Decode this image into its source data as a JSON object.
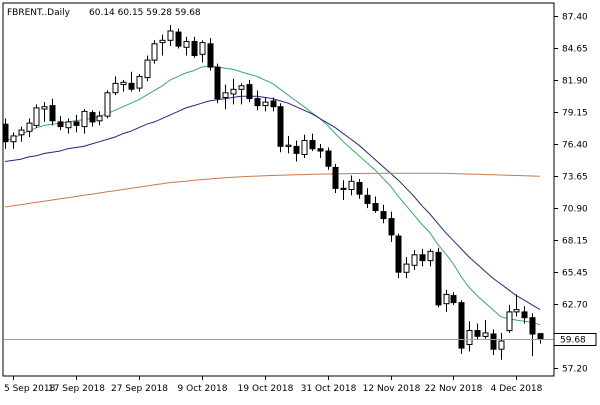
{
  "header": {
    "symbol_label": "FBRENT..Daily",
    "ohlc_label": "60.14 60.15 59.28 59.68"
  },
  "last_price_label": "59.68",
  "colors": {
    "background": "#ffffff",
    "axis": "#000000",
    "candle_bull_fill": "#ffffff",
    "candle_bear_fill": "#000000",
    "candle_outline": "#000000",
    "ma_fast": "#3aa672",
    "ma_mid": "#1f2a80",
    "ma_slow": "#c87a4a",
    "price_line": "#a0a0a0"
  },
  "chart_data": {
    "type": "candlestick",
    "title": "FBRENT..Daily",
    "y_ticks": [
      "87.40",
      "84.65",
      "81.90",
      "79.15",
      "76.40",
      "73.65",
      "70.90",
      "68.15",
      "65.45",
      "62.70",
      "59.68",
      "57.20"
    ],
    "x_ticks": [
      "5 Sep 2018",
      "17 Sep 2018",
      "27 Sep 2018",
      "9 Oct 2018",
      "19 Oct 2018",
      "31 Oct 2018",
      "12 Nov 2018",
      "22 Nov 2018",
      "4 Dec 2018"
    ],
    "ylim": [
      56.5,
      88.5
    ],
    "last_price": 59.68,
    "grid": false,
    "candles": [
      {
        "date": "4 Sep 2018",
        "o": 78.1,
        "h": 78.6,
        "l": 76.0,
        "c": 76.6
      },
      {
        "date": "5 Sep 2018",
        "o": 76.6,
        "h": 77.4,
        "l": 76.0,
        "c": 77.1
      },
      {
        "date": "6 Sep 2018",
        "o": 77.2,
        "h": 77.9,
        "l": 76.6,
        "c": 77.6
      },
      {
        "date": "7 Sep 2018",
        "o": 77.5,
        "h": 78.6,
        "l": 77.0,
        "c": 78.2
      },
      {
        "date": "10 Sep 2018",
        "o": 78.0,
        "h": 79.8,
        "l": 77.8,
        "c": 79.5
      },
      {
        "date": "11 Sep 2018",
        "o": 79.4,
        "h": 80.0,
        "l": 78.3,
        "c": 79.6
      },
      {
        "date": "12 Sep 2018",
        "o": 79.7,
        "h": 80.3,
        "l": 78.0,
        "c": 78.4
      },
      {
        "date": "13 Sep 2018",
        "o": 78.3,
        "h": 78.8,
        "l": 77.6,
        "c": 77.9
      },
      {
        "date": "14 Sep 2018",
        "o": 77.8,
        "h": 78.6,
        "l": 77.3,
        "c": 78.3
      },
      {
        "date": "17 Sep 2018",
        "o": 78.3,
        "h": 78.9,
        "l": 77.4,
        "c": 78.0
      },
      {
        "date": "18 Sep 2018",
        "o": 77.9,
        "h": 79.4,
        "l": 77.3,
        "c": 79.2
      },
      {
        "date": "19 Sep 2018",
        "o": 79.1,
        "h": 79.3,
        "l": 77.9,
        "c": 78.3
      },
      {
        "date": "20 Sep 2018",
        "o": 78.4,
        "h": 79.2,
        "l": 78.0,
        "c": 78.8
      },
      {
        "date": "21 Sep 2018",
        "o": 78.8,
        "h": 81.0,
        "l": 78.6,
        "c": 80.8
      },
      {
        "date": "24 Sep 2018",
        "o": 80.8,
        "h": 82.2,
        "l": 80.6,
        "c": 81.6
      },
      {
        "date": "25 Sep 2018",
        "o": 81.5,
        "h": 81.9,
        "l": 80.9,
        "c": 81.7
      },
      {
        "date": "26 Sep 2018",
        "o": 81.6,
        "h": 82.6,
        "l": 80.9,
        "c": 81.1
      },
      {
        "date": "27 Sep 2018",
        "o": 81.2,
        "h": 82.4,
        "l": 80.9,
        "c": 82.2
      },
      {
        "date": "28 Sep 2018",
        "o": 82.1,
        "h": 84.0,
        "l": 81.8,
        "c": 83.6
      },
      {
        "date": "1 Oct 2018",
        "o": 83.6,
        "h": 85.3,
        "l": 83.3,
        "c": 85.0
      },
      {
        "date": "2 Oct 2018",
        "o": 85.1,
        "h": 85.8,
        "l": 84.0,
        "c": 85.3
      },
      {
        "date": "3 Oct 2018",
        "o": 85.3,
        "h": 86.6,
        "l": 84.8,
        "c": 86.1
      },
      {
        "date": "4 Oct 2018",
        "o": 86.0,
        "h": 86.3,
        "l": 84.6,
        "c": 84.8
      },
      {
        "date": "5 Oct 2018",
        "o": 84.7,
        "h": 85.6,
        "l": 84.0,
        "c": 85.2
      },
      {
        "date": "8 Oct 2018",
        "o": 85.2,
        "h": 85.6,
        "l": 83.8,
        "c": 84.0
      },
      {
        "date": "9 Oct 2018",
        "o": 84.1,
        "h": 85.3,
        "l": 83.4,
        "c": 85.1
      },
      {
        "date": "10 Oct 2018",
        "o": 85.0,
        "h": 85.5,
        "l": 82.7,
        "c": 83.0
      },
      {
        "date": "11 Oct 2018",
        "o": 83.0,
        "h": 83.3,
        "l": 79.9,
        "c": 80.3
      },
      {
        "date": "12 Oct 2018",
        "o": 80.4,
        "h": 81.5,
        "l": 79.4,
        "c": 80.8
      },
      {
        "date": "15 Oct 2018",
        "o": 80.7,
        "h": 82.0,
        "l": 79.8,
        "c": 81.1
      },
      {
        "date": "16 Oct 2018",
        "o": 81.1,
        "h": 81.6,
        "l": 79.8,
        "c": 81.4
      },
      {
        "date": "17 Oct 2018",
        "o": 81.5,
        "h": 81.9,
        "l": 80.0,
        "c": 80.3
      },
      {
        "date": "18 Oct 2018",
        "o": 80.3,
        "h": 81.0,
        "l": 79.3,
        "c": 79.7
      },
      {
        "date": "19 Oct 2018",
        "o": 79.7,
        "h": 80.4,
        "l": 79.2,
        "c": 80.0
      },
      {
        "date": "22 Oct 2018",
        "o": 80.1,
        "h": 80.4,
        "l": 79.2,
        "c": 79.6
      },
      {
        "date": "23 Oct 2018",
        "o": 79.6,
        "h": 79.9,
        "l": 75.7,
        "c": 76.2
      },
      {
        "date": "24 Oct 2018",
        "o": 76.2,
        "h": 77.1,
        "l": 75.6,
        "c": 76.3
      },
      {
        "date": "25 Oct 2018",
        "o": 76.2,
        "h": 76.7,
        "l": 74.9,
        "c": 75.6
      },
      {
        "date": "26 Oct 2018",
        "o": 75.5,
        "h": 77.2,
        "l": 75.2,
        "c": 76.7
      },
      {
        "date": "29 Oct 2018",
        "o": 76.7,
        "h": 77.3,
        "l": 75.8,
        "c": 76.0
      },
      {
        "date": "30 Oct 2018",
        "o": 76.0,
        "h": 76.4,
        "l": 75.2,
        "c": 75.8
      },
      {
        "date": "31 Oct 2018",
        "o": 75.8,
        "h": 76.1,
        "l": 74.2,
        "c": 74.5
      },
      {
        "date": "1 Nov 2018",
        "o": 74.4,
        "h": 74.7,
        "l": 72.2,
        "c": 72.6
      },
      {
        "date": "2 Nov 2018",
        "o": 72.6,
        "h": 73.3,
        "l": 71.6,
        "c": 72.5
      },
      {
        "date": "5 Nov 2018",
        "o": 72.5,
        "h": 73.7,
        "l": 72.0,
        "c": 73.2
      },
      {
        "date": "6 Nov 2018",
        "o": 73.1,
        "h": 73.4,
        "l": 71.7,
        "c": 72.1
      },
      {
        "date": "7 Nov 2018",
        "o": 72.0,
        "h": 72.6,
        "l": 70.9,
        "c": 71.3
      },
      {
        "date": "8 Nov 2018",
        "o": 71.3,
        "h": 71.9,
        "l": 70.5,
        "c": 70.7
      },
      {
        "date": "9 Nov 2018",
        "o": 70.6,
        "h": 71.2,
        "l": 69.6,
        "c": 70.0
      },
      {
        "date": "12 Nov 2018",
        "o": 70.0,
        "h": 70.6,
        "l": 68.0,
        "c": 68.6
      },
      {
        "date": "13 Nov 2018",
        "o": 68.5,
        "h": 68.7,
        "l": 64.9,
        "c": 65.4
      },
      {
        "date": "14 Nov 2018",
        "o": 65.4,
        "h": 66.7,
        "l": 64.9,
        "c": 66.1
      },
      {
        "date": "15 Nov 2018",
        "o": 66.0,
        "h": 67.3,
        "l": 65.6,
        "c": 66.9
      },
      {
        "date": "16 Nov 2018",
        "o": 66.9,
        "h": 67.4,
        "l": 65.9,
        "c": 66.4
      },
      {
        "date": "19 Nov 2018",
        "o": 66.4,
        "h": 67.4,
        "l": 65.9,
        "c": 67.2
      },
      {
        "date": "20 Nov 2018",
        "o": 67.1,
        "h": 67.5,
        "l": 62.4,
        "c": 62.6
      },
      {
        "date": "21 Nov 2018",
        "o": 62.7,
        "h": 63.9,
        "l": 62.0,
        "c": 63.5
      },
      {
        "date": "22 Nov 2018",
        "o": 63.4,
        "h": 63.7,
        "l": 62.6,
        "c": 62.8
      },
      {
        "date": "23 Nov 2018",
        "o": 62.8,
        "h": 63.0,
        "l": 58.4,
        "c": 58.9
      },
      {
        "date": "26 Nov 2018",
        "o": 59.2,
        "h": 61.2,
        "l": 58.6,
        "c": 60.4
      },
      {
        "date": "27 Nov 2018",
        "o": 60.4,
        "h": 61.0,
        "l": 59.6,
        "c": 59.9
      },
      {
        "date": "28 Nov 2018",
        "o": 59.9,
        "h": 61.3,
        "l": 59.7,
        "c": 60.2
      },
      {
        "date": "29 Nov 2018",
        "o": 60.1,
        "h": 60.5,
        "l": 58.3,
        "c": 58.8
      },
      {
        "date": "30 Nov 2018",
        "o": 58.8,
        "h": 60.2,
        "l": 57.9,
        "c": 59.5
      },
      {
        "date": "3 Dec 2018",
        "o": 60.4,
        "h": 62.6,
        "l": 60.2,
        "c": 62.0
      },
      {
        "date": "4 Dec 2018",
        "o": 62.0,
        "h": 63.5,
        "l": 61.6,
        "c": 62.2
      },
      {
        "date": "5 Dec 2018",
        "o": 62.0,
        "h": 62.5,
        "l": 61.0,
        "c": 61.5
      },
      {
        "date": "6 Dec 2018",
        "o": 61.5,
        "h": 61.9,
        "l": 58.2,
        "c": 60.1
      },
      {
        "date": "7 Dec 2018",
        "o": 60.14,
        "h": 60.15,
        "l": 59.28,
        "c": 59.68
      }
    ],
    "moving_averages": [
      {
        "color_key": "ma_fast",
        "values": [
          76.6,
          76.9,
          77.2,
          77.5,
          77.8,
          78.0,
          78.1,
          78.2,
          78.3,
          78.4,
          78.5,
          78.6,
          78.8,
          79.0,
          79.3,
          79.6,
          79.9,
          80.2,
          80.6,
          81.0,
          81.4,
          81.9,
          82.2,
          82.5,
          82.7,
          83.0,
          83.1,
          83.0,
          82.9,
          82.8,
          82.6,
          82.4,
          82.2,
          81.9,
          81.6,
          81.1,
          80.6,
          80.1,
          79.6,
          79.1,
          78.6,
          78.0,
          77.3,
          76.6,
          76.0,
          75.4,
          74.8,
          74.2,
          73.5,
          72.8,
          71.9,
          71.1,
          70.3,
          69.5,
          68.8,
          67.8,
          67.0,
          66.1,
          65.0,
          64.1,
          63.4,
          62.8,
          62.2,
          61.6,
          61.4,
          61.3,
          61.2,
          61.1,
          60.9
        ]
      },
      {
        "color_key": "ma_mid",
        "values": [
          74.9,
          75.0,
          75.1,
          75.3,
          75.4,
          75.6,
          75.7,
          75.8,
          76.0,
          76.1,
          76.2,
          76.4,
          76.6,
          76.8,
          77.0,
          77.3,
          77.5,
          77.8,
          78.1,
          78.3,
          78.6,
          78.9,
          79.2,
          79.5,
          79.7,
          79.9,
          80.1,
          80.2,
          80.3,
          80.4,
          80.5,
          80.5,
          80.5,
          80.4,
          80.3,
          80.1,
          79.9,
          79.6,
          79.3,
          79.0,
          78.6,
          78.2,
          77.8,
          77.3,
          76.8,
          76.3,
          75.7,
          75.1,
          74.5,
          73.9,
          73.3,
          72.6,
          71.9,
          71.1,
          70.4,
          69.6,
          68.8,
          68.1,
          67.4,
          66.7,
          66.1,
          65.5,
          64.9,
          64.4,
          63.9,
          63.4,
          63.0,
          62.6,
          62.2
        ]
      },
      {
        "color_key": "ma_slow",
        "values": [
          71.0,
          71.1,
          71.2,
          71.3,
          71.4,
          71.5,
          71.6,
          71.7,
          71.8,
          71.9,
          72.0,
          72.1,
          72.2,
          72.3,
          72.4,
          72.5,
          72.6,
          72.7,
          72.8,
          72.9,
          73.0,
          73.1,
          73.15,
          73.2,
          73.3,
          73.35,
          73.4,
          73.45,
          73.5,
          73.55,
          73.6,
          73.62,
          73.65,
          73.68,
          73.7,
          73.72,
          73.74,
          73.76,
          73.78,
          73.8,
          73.82,
          73.83,
          73.84,
          73.85,
          73.86,
          73.87,
          73.88,
          73.88,
          73.89,
          73.89,
          73.9,
          73.9,
          73.9,
          73.9,
          73.9,
          73.89,
          73.88,
          73.86,
          73.84,
          73.82,
          73.8,
          73.78,
          73.76,
          73.74,
          73.72,
          73.7,
          73.68,
          73.66,
          73.64
        ]
      }
    ]
  }
}
